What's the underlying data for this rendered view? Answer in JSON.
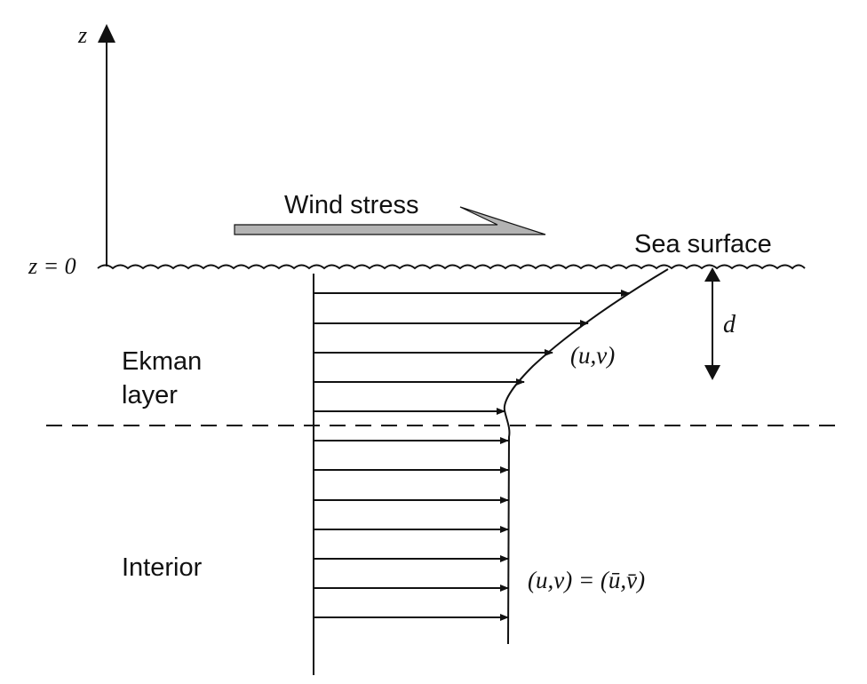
{
  "labels": {
    "z_axis": "z",
    "z_zero": "z = 0",
    "wind_stress": "Wind stress",
    "sea_surface": "Sea surface",
    "depth": "d",
    "ekman_line1": "Ekman",
    "ekman_line2": "layer",
    "interior": "Interior",
    "profile_uv": "(u,v)",
    "interior_uv": "(u,v) = (ū,v̄)"
  },
  "colors": {
    "ink": "#111111",
    "wind_arrow_fill": "#b3b3b3"
  },
  "velocity_arrows": {
    "ekman_layer_count": 5,
    "interior_count": 7
  }
}
